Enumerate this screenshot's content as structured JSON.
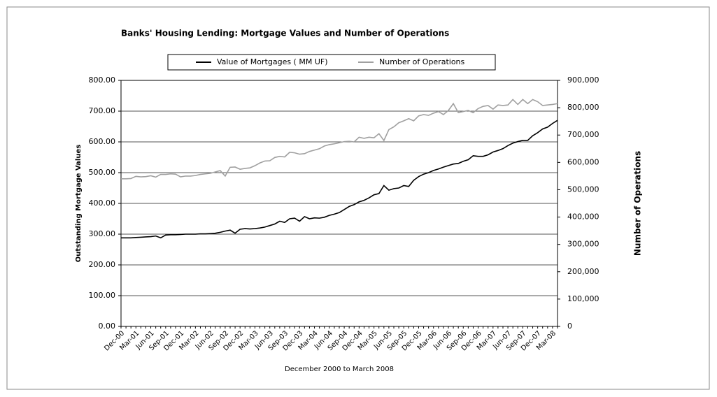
{
  "chart_data": {
    "type": "line",
    "title": "Banks' Housing Lending: Mortgage Values and Number of Operations",
    "x_label": "December 2000 to March 2008",
    "y_label": "Outstanding Mortgage Values",
    "y2_label": "Number of Operations",
    "categories": [
      "Dec-00",
      null,
      null,
      "Mar-01",
      null,
      null,
      "Jun-01",
      null,
      null,
      "Sep-01",
      null,
      null,
      "Dec-01",
      null,
      null,
      "Mar-02",
      null,
      null,
      "Jun-02",
      null,
      null,
      "Sep-02",
      null,
      null,
      "Dec-02",
      null,
      null,
      "Mar-03",
      null,
      null,
      "Jun-03",
      null,
      null,
      "Sep-03",
      null,
      null,
      "Dec-03",
      null,
      null,
      "Mar-04",
      null,
      null,
      "Jun-04",
      null,
      null,
      "Sep-04",
      null,
      null,
      "Dec-04",
      null,
      null,
      "Mar-05",
      null,
      null,
      "Jun-05",
      null,
      null,
      "Sep-05",
      null,
      null,
      "Dec-05",
      null,
      null,
      "Mar-06",
      null,
      null,
      "Jun-06",
      null,
      null,
      "Sep-06",
      null,
      null,
      "Dec-06",
      null,
      null,
      "Mar-07",
      null,
      null,
      "Jun-07",
      null,
      null,
      "Sep-07",
      null,
      null,
      "Dec-07",
      null,
      null,
      "Mar-08",
      null
    ],
    "series": [
      {
        "name": "Value of Mortgages ( MM UF)",
        "color": "#000000",
        "axis": "y",
        "values": [
          288,
          288,
          288,
          289,
          290,
          291,
          292,
          294,
          288,
          297,
          298,
          298,
          299,
          300,
          300,
          300,
          301,
          301,
          302,
          303,
          306,
          310,
          313,
          303,
          316,
          318,
          317,
          318,
          320,
          323,
          328,
          333,
          342,
          338,
          350,
          352,
          342,
          357,
          350,
          353,
          352,
          355,
          361,
          365,
          370,
          380,
          390,
          396,
          405,
          410,
          418,
          428,
          432,
          458,
          443,
          448,
          450,
          458,
          455,
          475,
          487,
          495,
          500,
          507,
          512,
          518,
          523,
          528,
          530,
          537,
          542,
          555,
          553,
          553,
          558,
          567,
          572,
          578,
          588,
          596,
          601,
          605,
          605,
          620,
          630,
          642,
          648,
          660,
          670
        ]
      },
      {
        "name": "Number of Operations",
        "color": "#a0a0a0",
        "axis": "y2",
        "values": [
          540000,
          540000,
          541000,
          549000,
          547000,
          548000,
          551000,
          546000,
          556000,
          556000,
          558000,
          557000,
          547000,
          550000,
          550000,
          552000,
          556000,
          558000,
          560000,
          565000,
          570000,
          550000,
          582000,
          583000,
          575000,
          578000,
          580000,
          588000,
          598000,
          605000,
          606000,
          618000,
          622000,
          620000,
          637000,
          635000,
          630000,
          632000,
          640000,
          645000,
          650000,
          660000,
          665000,
          668000,
          672000,
          676000,
          677000,
          675000,
          692000,
          688000,
          692000,
          690000,
          705000,
          680000,
          720000,
          730000,
          745000,
          752000,
          760000,
          752000,
          770000,
          775000,
          772000,
          780000,
          786000,
          775000,
          790000,
          815000,
          782000,
          786000,
          790000,
          782000,
          797000,
          805000,
          808000,
          795000,
          810000,
          808000,
          810000,
          830000,
          812000,
          830000,
          815000,
          830000,
          822000,
          808000,
          810000,
          812000,
          815000
        ]
      }
    ],
    "ylim": [
      0,
      800
    ],
    "yticks": [
      {
        "value": 0,
        "label": "0.00"
      },
      {
        "value": 100,
        "label": "100.00"
      },
      {
        "value": 200,
        "label": "200.00"
      },
      {
        "value": 300,
        "label": "300.00"
      },
      {
        "value": 400,
        "label": "400.00"
      },
      {
        "value": 500,
        "label": "500.00"
      },
      {
        "value": 600,
        "label": "600.00"
      },
      {
        "value": 700,
        "label": "700.00"
      },
      {
        "value": 800,
        "label": "800.00"
      }
    ],
    "y2lim": [
      0,
      900000
    ],
    "y2ticks": [
      0,
      {
        "value": 100000,
        "label": "100,000"
      },
      {
        "value": 200000,
        "label": "200,000"
      },
      {
        "value": 300000,
        "label": "300,000"
      },
      {
        "value": 400000,
        "label": "400,000"
      },
      {
        "value": 500000,
        "label": "500,000"
      },
      {
        "value": 600000,
        "label": "600,000"
      },
      {
        "value": 700000,
        "label": "700,000"
      },
      {
        "value": 800000,
        "label": "800,000"
      },
      {
        "value": 900000,
        "label": "900,000"
      }
    ],
    "grid": true,
    "legend": "top"
  }
}
